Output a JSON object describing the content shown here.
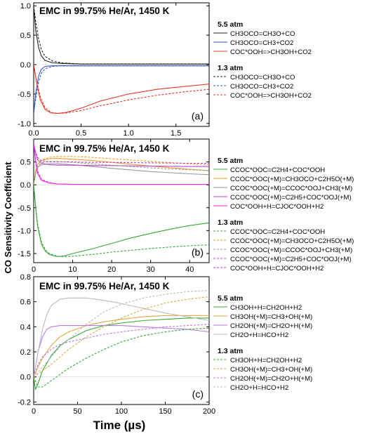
{
  "figure": {
    "ylabel": "CO Sensitivity Coefficient",
    "xlabel": "Time (µs)"
  },
  "chart_data": [
    {
      "type": "line",
      "panel": "(a)",
      "title": "EMC in 99.75% He/Ar, 1450 K",
      "xlim": [
        0,
        1.85
      ],
      "ylim": [
        -1.05,
        1.05
      ],
      "xticks": [
        "0.0",
        "0.5",
        "1.0",
        "1.5"
      ],
      "xtick_values": [
        0,
        0.5,
        1.0,
        1.5
      ],
      "yticks": [
        "-1.0",
        "-0.5",
        "0.0",
        "0.5",
        "1.0"
      ],
      "ytick_values": [
        -1.0,
        -0.5,
        0.0,
        0.5,
        1.0
      ],
      "legend_groups": [
        {
          "heading": "5.5 atm",
          "style": "solid"
        },
        {
          "heading": "1.3 atm",
          "style": "dashed"
        }
      ],
      "series": [
        {
          "name": "CH3OCO=CH3O+CO",
          "group": "5.5 atm",
          "color": "#222222",
          "dash": false,
          "x": [
            0,
            0.02,
            0.05,
            0.08,
            0.12,
            0.2,
            0.3,
            0.5,
            1.0,
            1.5,
            1.85
          ],
          "y": [
            1.0,
            0.6,
            0.3,
            0.15,
            0.07,
            0.03,
            0.02,
            0.01,
            0.01,
            0.01,
            0.01
          ]
        },
        {
          "name": "CH3OCO=CH3+CO2",
          "group": "5.5 atm",
          "color": "#3355cc",
          "dash": false,
          "x": [
            0,
            0.02,
            0.05,
            0.08,
            0.12,
            0.2,
            0.3,
            0.5,
            1.0,
            1.85
          ],
          "y": [
            -0.85,
            -0.5,
            -0.2,
            -0.08,
            -0.03,
            -0.02,
            -0.02,
            -0.02,
            -0.02,
            -0.02
          ]
        },
        {
          "name": "COC*OOH=>CH3OH+CO2",
          "group": "5.5 atm",
          "color": "#ee3322",
          "dash": false,
          "x": [
            0,
            0.03,
            0.07,
            0.12,
            0.18,
            0.25,
            0.35,
            0.5,
            0.7,
            1.0,
            1.3,
            1.6,
            1.85
          ],
          "y": [
            0,
            -0.3,
            -0.6,
            -0.76,
            -0.82,
            -0.83,
            -0.81,
            -0.74,
            -0.62,
            -0.5,
            -0.42,
            -0.37,
            -0.33
          ]
        },
        {
          "name": "CH3OCO=CH3O+CO",
          "group": "1.3 atm",
          "color": "#222222",
          "dash": true,
          "x": [
            0,
            0.02,
            0.05,
            0.08,
            0.12,
            0.2,
            0.3,
            0.5,
            1.0,
            1.85
          ],
          "y": [
            1.0,
            0.75,
            0.45,
            0.26,
            0.14,
            0.06,
            0.03,
            0.01,
            0.01,
            0.01
          ]
        },
        {
          "name": "CH3OCO=CH3+CO2",
          "group": "1.3 atm",
          "color": "#3355cc",
          "dash": true,
          "x": [
            0,
            0.02,
            0.05,
            0.08,
            0.12,
            0.2,
            0.3,
            0.5,
            1.0,
            1.85
          ],
          "y": [
            -0.8,
            -0.6,
            -0.3,
            -0.15,
            -0.07,
            -0.03,
            -0.02,
            -0.02,
            -0.02,
            -0.02
          ]
        },
        {
          "name": "COC*OOH=>CH3OH+CO2",
          "group": "1.3 atm",
          "color": "#ee3322",
          "dash": true,
          "x": [
            0,
            0.03,
            0.07,
            0.12,
            0.18,
            0.25,
            0.35,
            0.5,
            0.7,
            1.0,
            1.3,
            1.6,
            1.85
          ],
          "y": [
            0,
            -0.28,
            -0.55,
            -0.73,
            -0.81,
            -0.83,
            -0.82,
            -0.78,
            -0.7,
            -0.6,
            -0.52,
            -0.46,
            -0.42
          ]
        }
      ]
    },
    {
      "type": "line",
      "panel": "(b)",
      "title": "EMC in 99.75% He/Ar, 1450 K",
      "xlim": [
        0,
        45
      ],
      "ylim": [
        -1.7,
        1.0
      ],
      "xticks": [
        "0",
        "10",
        "20",
        "30",
        "40"
      ],
      "xtick_values": [
        0,
        10,
        20,
        30,
        40
      ],
      "yticks": [
        "-1.5",
        "-1.0",
        "-0.5",
        "0.0",
        "0.5"
      ],
      "ytick_values": [
        -1.5,
        -1.0,
        -0.5,
        0.0,
        0.5
      ],
      "legend_groups": [
        {
          "heading": "5.5 atm",
          "style": "solid"
        },
        {
          "heading": "1.3 atm",
          "style": "dashed"
        }
      ],
      "series": [
        {
          "name": "CCOC*OOC=C2H4+COC*OOH",
          "group": "5.5 atm",
          "color": "#33aa33",
          "dash": false,
          "x": [
            0,
            0.5,
            1,
            2,
            3,
            4,
            6,
            8,
            10,
            15,
            20,
            25,
            30,
            35,
            40,
            45
          ],
          "y": [
            0,
            -0.5,
            -0.9,
            -1.3,
            -1.45,
            -1.52,
            -1.57,
            -1.55,
            -1.5,
            -1.4,
            -1.28,
            -1.16,
            -1.06,
            -0.97,
            -0.89,
            -0.83
          ]
        },
        {
          "name": "CCOC*OOC(+M)=CH3OCO+C2H5O(+M)",
          "group": "5.5 atm",
          "color": "#ee9922",
          "dash": false,
          "x": [
            0,
            0.5,
            1,
            2,
            4,
            6,
            10,
            15,
            20,
            30,
            40,
            45
          ],
          "y": [
            0,
            0.3,
            0.45,
            0.53,
            0.57,
            0.58,
            0.56,
            0.53,
            0.49,
            0.41,
            0.34,
            0.31
          ]
        },
        {
          "name": "CCOC*OOC(+M)=CCOC*OOJ+CH3(+M)",
          "group": "5.5 atm",
          "color": "#999999",
          "dash": false,
          "x": [
            0,
            0.5,
            1,
            2,
            4,
            6,
            10,
            15,
            20,
            30,
            40,
            45
          ],
          "y": [
            0,
            0.25,
            0.38,
            0.44,
            0.46,
            0.46,
            0.44,
            0.4,
            0.36,
            0.29,
            0.24,
            0.22
          ]
        },
        {
          "name": "CCOC*OOC(+M)=C2H5+COC*OOJ(+M)",
          "group": "5.5 atm",
          "color": "#bb44cc",
          "dash": false,
          "x": [
            0,
            0.5,
            1,
            2,
            4,
            6,
            10,
            15,
            20,
            30,
            40,
            45
          ],
          "y": [
            0.9,
            0.7,
            0.55,
            0.47,
            0.44,
            0.43,
            0.43,
            0.42,
            0.42,
            0.41,
            0.4,
            0.4
          ]
        },
        {
          "name": "COC*OOH+H=CJOC*OOH+H2",
          "group": "5.5 atm",
          "color": "#ee22ee",
          "dash": false,
          "x": [
            0,
            0.5,
            1,
            2,
            4,
            6,
            10,
            20,
            30,
            45
          ],
          "y": [
            0.9,
            0.5,
            0.25,
            0.1,
            0.04,
            0.02,
            0.01,
            0.01,
            0.01,
            0.01
          ]
        },
        {
          "name": "CCOC*OOC=C2H4+COC*OOH",
          "group": "1.3 atm",
          "color": "#33aa33",
          "dash": true,
          "x": [
            0,
            0.5,
            1,
            2,
            3,
            4,
            6,
            8,
            10,
            15,
            20,
            25,
            30,
            35,
            40,
            45
          ],
          "y": [
            0,
            -0.45,
            -0.85,
            -1.25,
            -1.42,
            -1.5,
            -1.56,
            -1.57,
            -1.56,
            -1.52,
            -1.47,
            -1.43,
            -1.39,
            -1.36,
            -1.33,
            -1.31
          ]
        },
        {
          "name": "CCOC*OOC(+M)=CH3OCO+C2H5O(+M)",
          "group": "1.3 atm",
          "color": "#ee9922",
          "dash": true,
          "x": [
            0,
            0.5,
            1,
            2,
            4,
            6,
            10,
            15,
            20,
            30,
            40,
            45
          ],
          "y": [
            0,
            0.3,
            0.45,
            0.54,
            0.6,
            0.62,
            0.62,
            0.6,
            0.57,
            0.51,
            0.46,
            0.44
          ]
        },
        {
          "name": "CCOC*OOC(+M)=CCOC*OOJ+CH3(+M)",
          "group": "1.3 atm",
          "color": "#999999",
          "dash": true,
          "x": [
            0,
            0.5,
            1,
            2,
            4,
            6,
            10,
            15,
            20,
            30,
            40,
            45
          ],
          "y": [
            0,
            0.26,
            0.4,
            0.48,
            0.51,
            0.51,
            0.49,
            0.46,
            0.43,
            0.37,
            0.33,
            0.31
          ]
        },
        {
          "name": "CCOC*OOC(+M)=C2H5+COC*OOJ(+M)",
          "group": "1.3 atm",
          "color": "#bb44cc",
          "dash": true,
          "x": [
            0,
            0.5,
            1,
            2,
            4,
            6,
            10,
            15,
            20,
            30,
            40,
            45
          ],
          "y": [
            0.9,
            0.72,
            0.6,
            0.52,
            0.5,
            0.5,
            0.5,
            0.49,
            0.49,
            0.48,
            0.47,
            0.47
          ]
        },
        {
          "name": "COC*OOH+H=CJOC*OOH+H2",
          "group": "1.3 atm",
          "color": "#ee22ee",
          "dash": true,
          "x": [
            0,
            0.5,
            1,
            2,
            4,
            6,
            10,
            20,
            30,
            45
          ],
          "y": [
            0.9,
            0.55,
            0.3,
            0.12,
            0.05,
            0.02,
            0.01,
            0.01,
            0.01,
            0.01
          ]
        }
      ]
    },
    {
      "type": "line",
      "panel": "(c)",
      "title": "EMC in 99.75% He/Ar, 1450 K",
      "xlim": [
        0,
        200
      ],
      "ylim": [
        -0.22,
        0.8
      ],
      "xticks": [
        "0",
        "50",
        "100",
        "150",
        "200"
      ],
      "xtick_values": [
        0,
        50,
        100,
        150,
        200
      ],
      "yticks": [
        "-0.2",
        "0.0",
        "0.2",
        "0.4",
        "0.6",
        "0.8"
      ],
      "ytick_values": [
        -0.2,
        0.0,
        0.2,
        0.4,
        0.6,
        0.8
      ],
      "xlabel": "Time (µs)",
      "legend_groups": [
        {
          "heading": "5.5 atm",
          "style": "solid"
        },
        {
          "heading": "1.3 atm",
          "style": "dashed"
        }
      ],
      "series": [
        {
          "name": "CH3OH+H=CH2OH+H2",
          "group": "5.5 atm",
          "color": "#33aa33",
          "dash": false,
          "x": [
            0,
            2,
            5,
            10,
            20,
            30,
            40,
            60,
            80,
            100,
            125,
            150,
            175,
            200
          ],
          "y": [
            0,
            -0.1,
            -0.05,
            0.05,
            0.17,
            0.25,
            0.3,
            0.37,
            0.41,
            0.43,
            0.45,
            0.46,
            0.47,
            0.47
          ]
        },
        {
          "name": "CH3OH(+M)=CH3+OH(+M)",
          "group": "5.5 atm",
          "color": "#ddaa44",
          "dash": false,
          "x": [
            0,
            5,
            10,
            20,
            30,
            40,
            60,
            80,
            100,
            125,
            150,
            175,
            200
          ],
          "y": [
            0,
            0.08,
            0.15,
            0.25,
            0.32,
            0.36,
            0.41,
            0.44,
            0.46,
            0.48,
            0.49,
            0.49,
            0.49
          ]
        },
        {
          "name": "CH2OH(+M)=CH2O+H(+M)",
          "group": "5.5 atm",
          "color": "#bb77ee",
          "dash": false,
          "x": [
            0,
            5,
            10,
            15,
            20,
            30,
            40,
            60,
            80,
            100,
            125,
            150,
            175,
            200
          ],
          "y": [
            0,
            0.2,
            0.32,
            0.38,
            0.4,
            0.41,
            0.41,
            0.41,
            0.41,
            0.41,
            0.4,
            0.39,
            0.38,
            0.36
          ]
        },
        {
          "name": "CH2O+H=HCO+H2",
          "group": "5.5 atm",
          "color": "#bbbbbb",
          "dash": false,
          "x": [
            0,
            5,
            10,
            15,
            20,
            30,
            40,
            50,
            60,
            70,
            90,
            110,
            130,
            150,
            175,
            200
          ],
          "y": [
            0,
            0.2,
            0.38,
            0.5,
            0.57,
            0.62,
            0.63,
            0.63,
            0.63,
            0.62,
            0.6,
            0.57,
            0.54,
            0.51,
            0.48,
            0.45
          ]
        },
        {
          "name": "CH3OH+H=CH2OH+H2",
          "group": "1.3 atm",
          "color": "#33aa33",
          "dash": true,
          "x": [
            0,
            5,
            10,
            20,
            30,
            40,
            60,
            80,
            100,
            125,
            150,
            175,
            200
          ],
          "y": [
            0,
            -0.08,
            -0.08,
            -0.03,
            0.02,
            0.07,
            0.15,
            0.22,
            0.28,
            0.33,
            0.36,
            0.38,
            0.39
          ]
        },
        {
          "name": "CH3OH(+M)=CH3+OH(+M)",
          "group": "1.3 atm",
          "color": "#ddaa44",
          "dash": true,
          "x": [
            0,
            10,
            20,
            30,
            40,
            60,
            80,
            100,
            125,
            150,
            175,
            200
          ],
          "y": [
            0,
            0.05,
            0.1,
            0.16,
            0.22,
            0.32,
            0.4,
            0.47,
            0.54,
            0.59,
            0.62,
            0.64
          ]
        },
        {
          "name": "CH2OH(+M)=CH2O+H(+M)",
          "group": "1.3 atm",
          "color": "#bb77ee",
          "dash": true,
          "x": [
            0,
            5,
            10,
            20,
            30,
            40,
            60,
            80,
            100,
            125,
            150,
            175,
            200
          ],
          "y": [
            0,
            0.1,
            0.16,
            0.22,
            0.26,
            0.28,
            0.31,
            0.34,
            0.36,
            0.38,
            0.4,
            0.41,
            0.42
          ]
        },
        {
          "name": "CH2O+H=HCO+H2",
          "group": "1.3 atm",
          "color": "#bbbbbb",
          "dash": true,
          "x": [
            0,
            10,
            20,
            30,
            40,
            60,
            80,
            100,
            125,
            150,
            175,
            200
          ],
          "y": [
            0,
            0.08,
            0.16,
            0.24,
            0.3,
            0.42,
            0.52,
            0.58,
            0.63,
            0.66,
            0.68,
            0.69
          ]
        }
      ]
    }
  ]
}
